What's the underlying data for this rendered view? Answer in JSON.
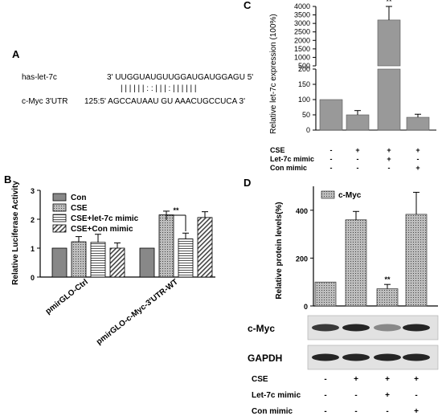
{
  "panel_a": {
    "label": "A",
    "mirna_name": "has-let-7c",
    "mirna_seq": "3' UUGGUAUGUUGGAUGAUGGAGU 5'",
    "pairing": "|  | | | | |         : :       | | | :  | | | | | |",
    "target_name": "c-Myc 3'UTR",
    "target_seq": "125:5' AGCCAUAAU GU AAACUGCCUCA 3'"
  },
  "panel_b": {
    "label": "B",
    "significance": "**"
  },
  "panel_c": {
    "label": "C",
    "significance": "**",
    "conditions": [
      {
        "name": "CSE",
        "marks": [
          "-",
          "+",
          "+",
          "+"
        ]
      },
      {
        "name": "Let-7c  mimic",
        "marks": [
          "-",
          "-",
          "+",
          "-"
        ]
      },
      {
        "name": "Con mimic",
        "marks": [
          "-",
          "-",
          "-",
          "+"
        ]
      }
    ]
  },
  "panel_d": {
    "label": "D",
    "significance": "**",
    "blot_labels": [
      "c-Myc",
      "GAPDH"
    ],
    "conditions": [
      {
        "name": "CSE",
        "marks": [
          "-",
          "+",
          "+",
          "+"
        ]
      },
      {
        "name": "Let-7c mimic",
        "marks": [
          "-",
          "-",
          "+",
          "-"
        ]
      },
      {
        "name": "Con mimic",
        "marks": [
          "-",
          "-",
          "-",
          "+"
        ]
      }
    ]
  },
  "chart_data": [
    {
      "type": "bar",
      "panel": "B",
      "ylabel": "Relative Luciferase Activity",
      "ylim": [
        0,
        3
      ],
      "yticks": [
        0,
        1,
        2,
        3
      ],
      "categories": [
        "pmirGLO-Ctrl",
        "pmirGLO-c-Myc-3'UTR-WT"
      ],
      "legend_position": "top-left",
      "series": [
        {
          "name": "Con",
          "values": [
            1.0,
            1.0
          ],
          "errors": [
            0,
            0
          ]
        },
        {
          "name": "CSE",
          "values": [
            1.22,
            2.15
          ],
          "errors": [
            0.18,
            0.13
          ]
        },
        {
          "name": "CSE+let-7c mimic",
          "values": [
            1.2,
            1.32
          ],
          "errors": [
            0.28,
            0.2
          ]
        },
        {
          "name": "CSE+Con mimic",
          "values": [
            1.0,
            2.06
          ],
          "errors": [
            0.18,
            0.2
          ]
        }
      ]
    },
    {
      "type": "bar",
      "panel": "C",
      "ylabel": "Relative let-7c expression (100%)",
      "axis_break": [
        200,
        500
      ],
      "yticks_lower": [
        0,
        50,
        100,
        150,
        200
      ],
      "yticks_upper": [
        500,
        1000,
        1500,
        2000,
        2500,
        3000,
        3500,
        4000
      ],
      "values": [
        100,
        50,
        3200,
        42
      ],
      "errors": [
        0,
        14,
        800,
        10
      ]
    },
    {
      "type": "bar",
      "panel": "D",
      "ylabel": "Relative protein levels(%)",
      "ylim": [
        0,
        500
      ],
      "yticks": [
        0,
        200,
        400
      ],
      "legend": "c-Myc",
      "values": [
        100,
        360,
        72,
        383
      ],
      "errors": [
        0,
        35,
        18,
        92
      ]
    }
  ]
}
